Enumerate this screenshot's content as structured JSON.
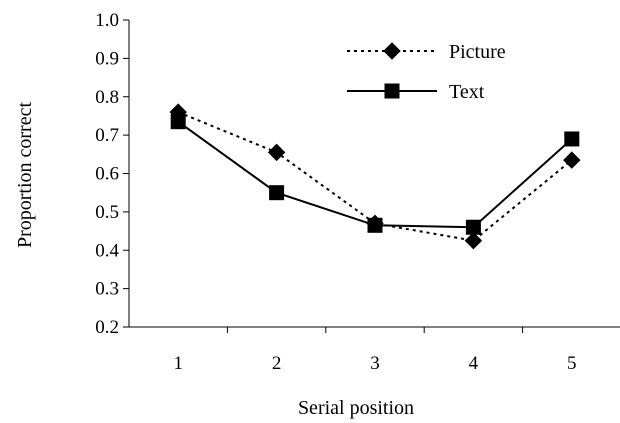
{
  "chart_data": {
    "type": "line",
    "title": "",
    "xlabel": "Serial position",
    "ylabel": "Proportion correct",
    "categories": [
      "1",
      "2",
      "3",
      "4",
      "5"
    ],
    "y_ticks": [
      "0.2",
      "0.3",
      "0.4",
      "0.5",
      "0.6",
      "0.7",
      "0.8",
      "0.9",
      "1.0"
    ],
    "ylim": [
      0.2,
      1.0
    ],
    "grid": false,
    "legend_position": "top-right",
    "series": [
      {
        "name": "Picture",
        "values": [
          0.76,
          0.655,
          0.47,
          0.425,
          0.635
        ],
        "line_style": "dotted",
        "marker": "diamond",
        "color": "#000000"
      },
      {
        "name": "Text",
        "values": [
          0.735,
          0.55,
          0.465,
          0.46,
          0.69
        ],
        "line_style": "solid",
        "marker": "square",
        "color": "#000000"
      }
    ]
  }
}
